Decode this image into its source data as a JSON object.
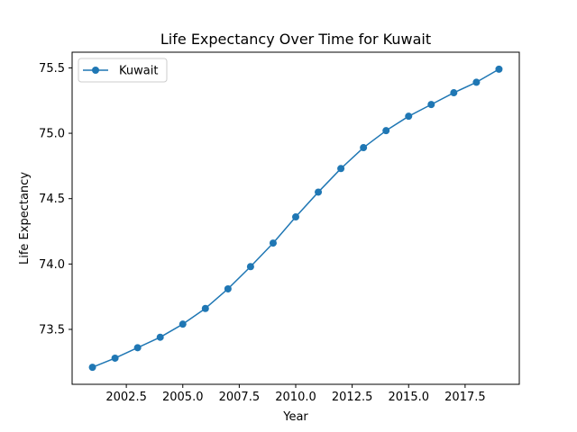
{
  "chart_data": {
    "type": "line",
    "title": "Life Expectancy Over Time for Kuwait",
    "xlabel": "Year",
    "ylabel": "Life Expectancy",
    "xlim": [
      2000.1,
      2019.9
    ],
    "ylim": [
      73.08,
      75.62
    ],
    "xticks": [
      2002.5,
      2005.0,
      2007.5,
      2010.0,
      2012.5,
      2015.0,
      2017.5
    ],
    "xtick_labels": [
      "2002.5",
      "2005.0",
      "2007.5",
      "2010.0",
      "2012.5",
      "2015.0",
      "2017.5"
    ],
    "yticks": [
      73.5,
      74.0,
      74.5,
      75.0,
      75.5
    ],
    "ytick_labels": [
      "73.5",
      "74.0",
      "74.5",
      "75.0",
      "75.5"
    ],
    "grid": false,
    "legend": {
      "position": "top-left"
    },
    "series": [
      {
        "name": "Kuwait",
        "color": "#1f77b4",
        "marker": "circle",
        "x": [
          2001,
          2002,
          2003,
          2004,
          2005,
          2006,
          2007,
          2008,
          2009,
          2010,
          2011,
          2012,
          2013,
          2014,
          2015,
          2016,
          2017,
          2018,
          2019
        ],
        "y": [
          73.21,
          73.28,
          73.36,
          73.44,
          73.54,
          73.66,
          73.81,
          73.98,
          74.16,
          74.36,
          74.55,
          74.73,
          74.89,
          75.02,
          75.13,
          75.22,
          75.31,
          75.39,
          75.49
        ]
      }
    ]
  }
}
